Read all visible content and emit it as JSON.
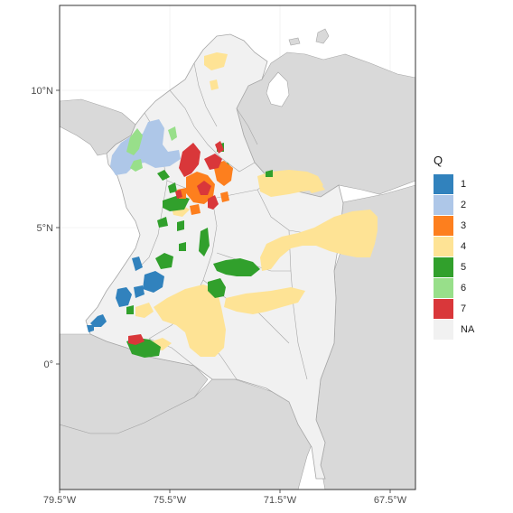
{
  "legend": {
    "title": "Q",
    "items": [
      {
        "label": "1",
        "color": "#3182bd"
      },
      {
        "label": "2",
        "color": "#aec7e8"
      },
      {
        "label": "3",
        "color": "#fd7f1e"
      },
      {
        "label": "4",
        "color": "#fee395"
      },
      {
        "label": "5",
        "color": "#31a02c"
      },
      {
        "label": "6",
        "color": "#98df8a"
      },
      {
        "label": "7",
        "color": "#d9373a"
      },
      {
        "label": "NA",
        "color": "#f1f1f1"
      }
    ]
  },
  "axes": {
    "x_ticks": [
      "79.5°W",
      "75.5°W",
      "71.5°W",
      "67.5°W"
    ],
    "y_ticks": [
      "10°N",
      "5°N",
      "0°"
    ]
  },
  "colors": {
    "sea": "#ffffff",
    "neighbor_land": "#d9d9d9",
    "colombia_na": "#f1f1f1",
    "border": "#a6a6a6",
    "grid": "#ebebeb"
  },
  "chart_data": {
    "type": "choropleth",
    "legend_placement": "right",
    "xlim": [
      -79.5,
      -66.0
    ],
    "ylim": [
      -4.5,
      13.0
    ],
    "grid": true
  }
}
